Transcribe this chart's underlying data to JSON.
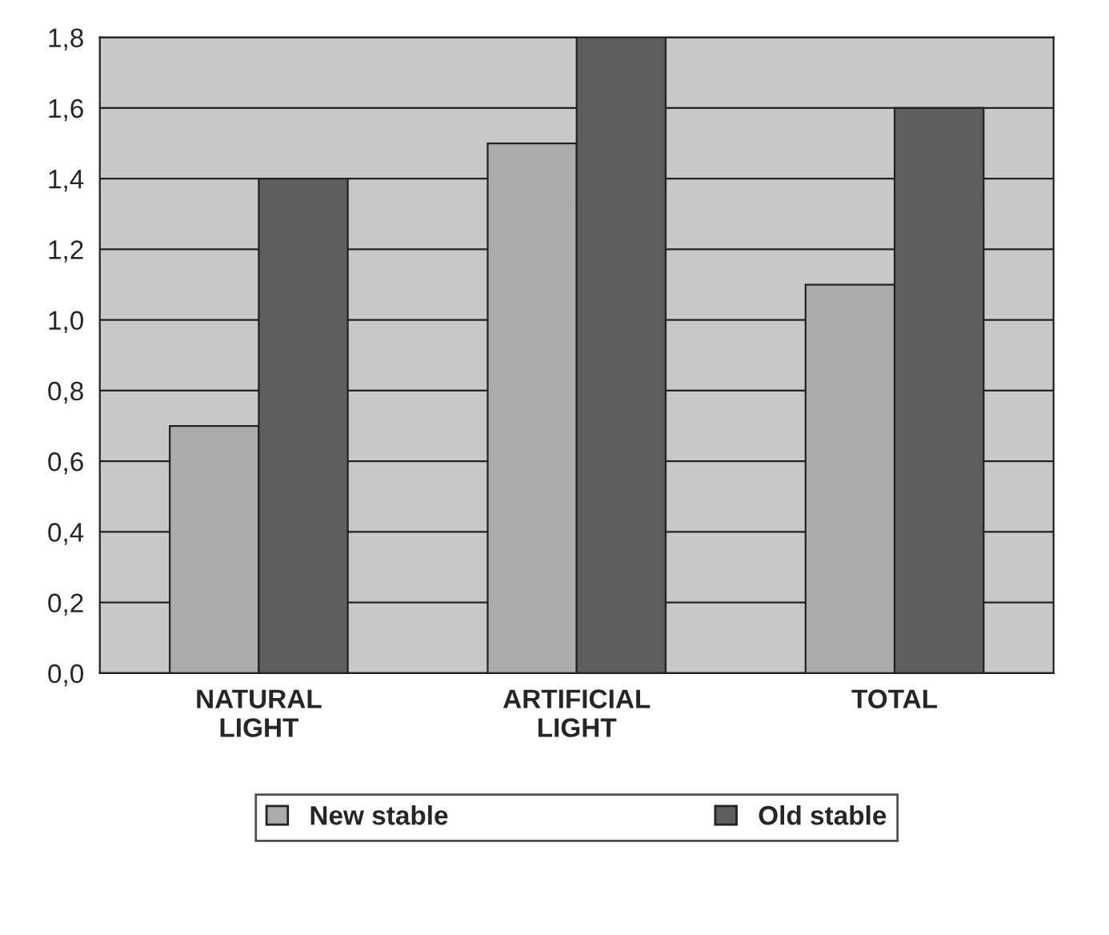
{
  "chart_data": {
    "type": "bar",
    "categories": [
      "NATURAL\nLIGHT",
      "ARTIFICIAL\nLIGHT",
      "TOTAL"
    ],
    "series": [
      {
        "name": "New stable",
        "color": "#ababab",
        "values": [
          0.7,
          1.5,
          1.1
        ]
      },
      {
        "name": "Old stable",
        "color": "#5e5e5e",
        "values": [
          1.4,
          1.8,
          1.6
        ]
      }
    ],
    "ylim": [
      0,
      1.8
    ],
    "yticks": [
      {
        "value": 0,
        "label": "0,0"
      },
      {
        "value": 0.2,
        "label": "0,2"
      },
      {
        "value": 0.4,
        "label": "0,4"
      },
      {
        "value": 0.6,
        "label": "0,6"
      },
      {
        "value": 0.8,
        "label": "0,8"
      },
      {
        "value": 1.0,
        "label": "1,0"
      },
      {
        "value": 1.2,
        "label": "1,2"
      },
      {
        "value": 1.4,
        "label": "1,4"
      },
      {
        "value": 1.6,
        "label": "1,6"
      },
      {
        "value": 1.8,
        "label": "1,8"
      }
    ],
    "grid": "y",
    "legend": "bottom"
  }
}
